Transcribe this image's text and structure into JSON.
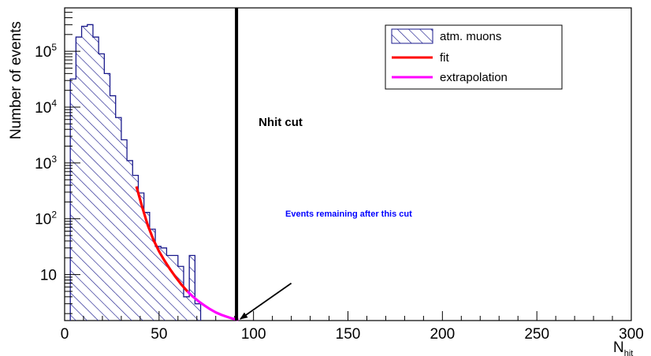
{
  "chart_data": {
    "type": "bar",
    "xlabel": "N",
    "xlabel_sub": "hit",
    "ylabel": "Number of events",
    "xlim": [
      0,
      300
    ],
    "ylim": [
      1.5,
      600000
    ],
    "yscale": "log",
    "xticks": [
      0,
      50,
      100,
      150,
      200,
      250,
      300
    ],
    "yticks": [
      {
        "value": 10,
        "base": "10",
        "exp": ""
      },
      {
        "value": 100,
        "base": "10",
        "exp": "2"
      },
      {
        "value": 1000,
        "base": "10",
        "exp": "3"
      },
      {
        "value": 10000,
        "base": "10",
        "exp": "4"
      },
      {
        "value": 100000,
        "base": "10",
        "exp": "5"
      }
    ],
    "histogram": {
      "name": "atm. muons",
      "bin_width": 3,
      "bin_start": 3,
      "values": [
        32000,
        180000,
        280000,
        300000,
        180000,
        90000,
        40000,
        16000,
        6500,
        2600,
        1100,
        600,
        290,
        130,
        65,
        32,
        30,
        22,
        22,
        14,
        4,
        22,
        3
      ],
      "color": "#1a1a8c"
    },
    "fit": {
      "name": "fit",
      "color": "#ff0000",
      "x": [
        38,
        41,
        44,
        47,
        50,
        53,
        56,
        59,
        62,
        65
      ],
      "y": [
        380,
        165,
        77,
        42,
        26,
        17.5,
        12.2,
        8.8,
        6.5,
        5.0
      ]
    },
    "extrapolation": {
      "name": "extrapolation",
      "color": "#ff00ff",
      "x": [
        65,
        68,
        71,
        74,
        77,
        80,
        83,
        86,
        89,
        92
      ],
      "y": [
        5.0,
        4.0,
        3.3,
        2.8,
        2.4,
        2.1,
        1.9,
        1.75,
        1.62,
        1.55
      ]
    },
    "cut": {
      "x": 91,
      "label": "Nhit cut"
    },
    "annotation": {
      "text": "Events remaining after this cut",
      "color": "#0000ff",
      "arrow_from": [
        120,
        7
      ],
      "arrow_to": [
        93,
        1.6
      ]
    },
    "legend": {
      "position": "top-right",
      "entries": [
        "atm. muons",
        "fit",
        "extrapolation"
      ]
    }
  }
}
